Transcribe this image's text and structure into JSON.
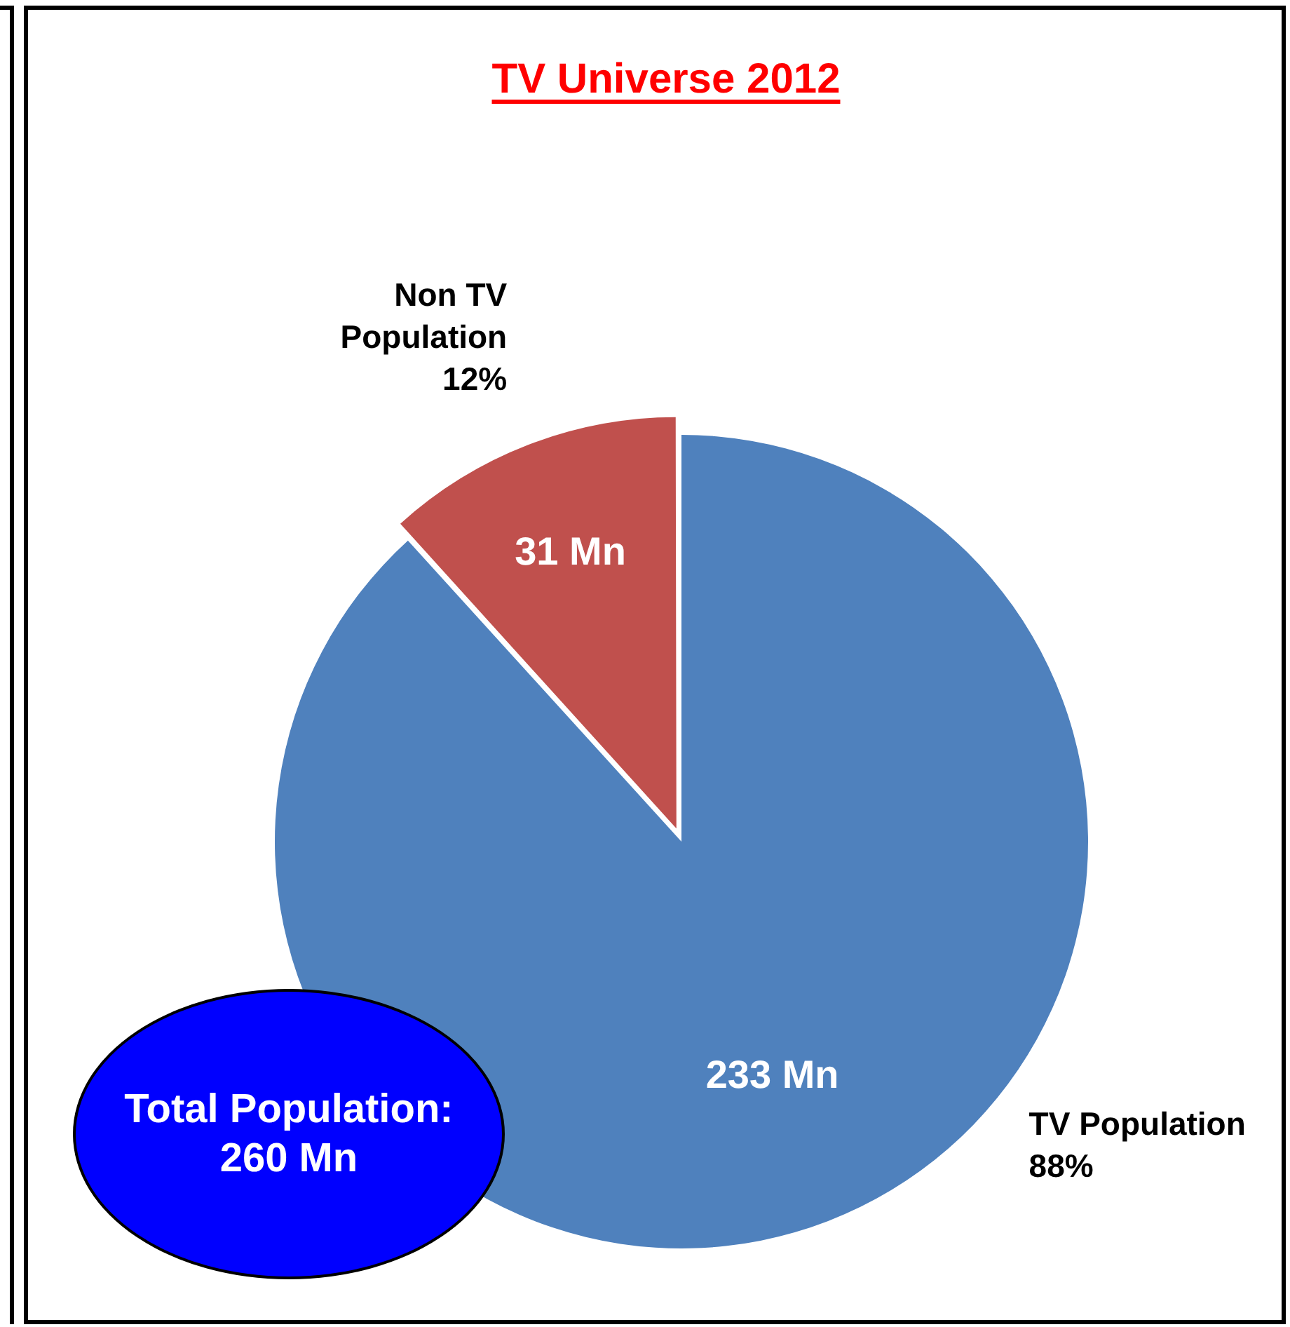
{
  "chart_data": {
    "type": "pie",
    "title": "TV Universe 2012",
    "categories": [
      "TV Population",
      "Non TV Population"
    ],
    "values": [
      233,
      31
    ],
    "colors": [
      "#4f81bd",
      "#c0504d"
    ],
    "value_labels": [
      "233 Mn",
      "31 Mn"
    ],
    "annotations": [
      "88%",
      "12%",
      "Total Population: 260 Mn"
    ],
    "legend": false
  }
}
